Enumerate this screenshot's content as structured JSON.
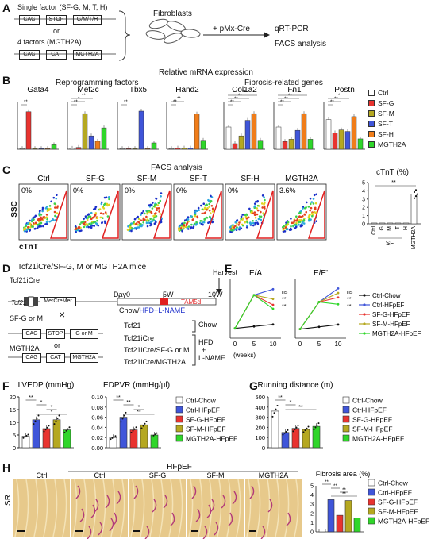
{
  "panels": {
    "A": "A",
    "B": "B",
    "C": "C",
    "D": "D",
    "E": "E",
    "F": "F",
    "G": "G",
    "H": "H"
  },
  "colors": {
    "ctrl": "#ffffff",
    "g": "#e8332f",
    "m": "#b5a820",
    "t": "#3f55d9",
    "h": "#f07d1a",
    "mgth2a": "#2fd62a",
    "chow": "#111111",
    "hfpef": "#3f55d9"
  },
  "panelA": {
    "single": "Single factor (SF-G, M, T, H)",
    "or": "or",
    "four": "4 factors (MGTH2A)",
    "cag": "CAG",
    "stop": "STOP",
    "gmth": "G/M/T/H",
    "cat": "CAT",
    "mgth2a": "MGTH2A",
    "fibroblasts": "Fibroblasts",
    "pmx": "+ pMx-Cre",
    "qrt": "qRT-PCR",
    "facs": "FACS analysis"
  },
  "panelB": {
    "title": "Relative mRNA expression",
    "group1": "Reprogramming factors",
    "group2": "Fibrosis-related genes",
    "genes": [
      "Gata4",
      "Mef2c",
      "Tbx5",
      "Hand2",
      "Col1a2",
      "Fn1",
      "Postn"
    ],
    "legend": [
      "Ctrl",
      "SF-G",
      "SF-M",
      "SF-T",
      "SF-H",
      "MGTH2A"
    ]
  },
  "panelC": {
    "title": "FACS analysis",
    "groups": [
      "Ctrl",
      "SF-G",
      "SF-M",
      "SF-T",
      "SF-H",
      "MGTH2A"
    ],
    "percents": [
      "0%",
      "0%",
      "0%",
      "0%",
      "0%",
      "3.6%"
    ],
    "ylabel": "SSC",
    "xlabel": "cTnT",
    "bar_title": "cTnT (%)",
    "bar_cats": [
      "Ctrl",
      "G",
      "M",
      "T",
      "H",
      "MGTH2A"
    ],
    "bar_sf": "SF",
    "bar_ticks": [
      "0",
      "1",
      "2",
      "3",
      "4",
      "5"
    ],
    "sig": "**"
  },
  "panelD": {
    "title": "Tcf21iCre/SF-G, M or MGTH2A mice",
    "tcf21": "Tcf21iCre",
    "tcf21_box": "Tcf21",
    "mercremer": "MerCreMer",
    "sfgm": "SF-G or M",
    "cross": "×",
    "or": "or",
    "mgth2a": "MGTH2A",
    "cag": "CAG",
    "stop": "STOP",
    "gorm": "G or M",
    "cat": "CAT",
    "day0": "Day0",
    "w5": "5W",
    "w10": "10W",
    "harvest": "Harvest",
    "tam": "TAM5d",
    "regimen_chow": "Chow/",
    "regimen_hfd": "HFD+L-NAME",
    "row1": "Tcf21",
    "row2": "Tcf21iCre",
    "row3": "Tcf21iCre/SF-G or M",
    "row4": "Tcf21iCre/MGTH2A",
    "chow": "Chow",
    "hfd": "HFD",
    "plus": "+",
    "lname": "L-NAME"
  },
  "panelE": {
    "chart1": "E/A",
    "chart2": "E/E'",
    "xticks": [
      "0",
      "5",
      "10"
    ],
    "xunit": "(weeks)",
    "ns": "ns",
    "stars": "**",
    "legend": [
      "Ctrl-Chow",
      "Ctrl-HFpEF",
      "SF-G-HFpEF",
      "SF-M-HFpEF",
      "MGTH2A-HFpEF"
    ]
  },
  "panelF": {
    "lvedp": "LVEDP (mmHg)",
    "edpvr": "EDPVR (mmHg/µl)",
    "lv_ticks": [
      "0",
      "5",
      "10",
      "15",
      "20"
    ],
    "ed_ticks": [
      "0.00",
      "0.02",
      "0.04",
      "0.06",
      "0.08",
      "0.10"
    ],
    "legend": [
      "Ctrl-Chow",
      "Ctrl-HFpEF",
      "SF-G-HFpEF",
      "SF-M-HFpEF",
      "MGTH2A-HFpEF"
    ]
  },
  "panelG": {
    "title": "Running distance (m)",
    "ticks": [
      "0",
      "100",
      "200",
      "300",
      "400",
      "500"
    ],
    "legend": [
      "Ctrl-Chow",
      "Ctrl-HFpEF",
      "SF-G-HFpEF",
      "SF-M-HFpEF",
      "MGTH2A-HFpEF"
    ]
  },
  "panelH": {
    "hfpef": "HFpEF",
    "cols": [
      "Ctrl",
      "Ctrl",
      "SF-G",
      "SF-M",
      "MGTH2A"
    ],
    "sr": "SR",
    "fib_title": "Fibrosis area (%)",
    "ticks": [
      "0",
      "1",
      "2",
      "3",
      "4",
      "5"
    ],
    "legend": [
      "Ctrl-Chow",
      "Ctrl-HFpEF",
      "SF-G-HFpEF",
      "SF-M-HFpEF",
      "MGTH2A-HFpEF"
    ]
  },
  "chart_data": [
    {
      "type": "bar",
      "title": "Gata4",
      "categories": [
        "Ctrl",
        "SF-G",
        "SF-M",
        "SF-T",
        "SF-H",
        "MGTH2A"
      ],
      "values": [
        5,
        590,
        3,
        4,
        8,
        70
      ],
      "sig": [
        "**"
      ]
    },
    {
      "type": "bar",
      "title": "Mef2c",
      "categories": [
        "Ctrl",
        "SF-G",
        "SF-M",
        "SF-T",
        "SF-H",
        "MGTH2A"
      ],
      "values": [
        1,
        2,
        40,
        15,
        9,
        24
      ],
      "sig": [
        "**",
        "*",
        "**"
      ]
    },
    {
      "type": "bar",
      "title": "Tbx5",
      "categories": [
        "Ctrl",
        "SF-G",
        "SF-M",
        "SF-T",
        "SF-H",
        "MGTH2A"
      ],
      "values": [
        1,
        1,
        1,
        60,
        1,
        10
      ],
      "sig": [
        "**"
      ]
    },
    {
      "type": "bar",
      "title": "Hand2",
      "categories": [
        "Ctrl",
        "SF-G",
        "SF-M",
        "SF-T",
        "SF-H",
        "MGTH2A"
      ],
      "values": [
        1,
        3,
        3,
        3,
        95,
        24
      ],
      "sig": [
        "**",
        "**"
      ]
    },
    {
      "type": "bar",
      "title": "Col1a2",
      "categories": [
        "Ctrl",
        "SF-G",
        "SF-M",
        "SF-T",
        "SF-H",
        "MGTH2A"
      ],
      "values": [
        1.0,
        0.25,
        0.6,
        1.3,
        1.6,
        0.4
      ],
      "sig": [
        "**",
        "**",
        "**",
        "**"
      ]
    },
    {
      "type": "bar",
      "title": "Fn1",
      "categories": [
        "Ctrl",
        "SF-G",
        "SF-M",
        "SF-T",
        "SF-H",
        "MGTH2A"
      ],
      "values": [
        1.0,
        0.35,
        0.45,
        0.85,
        1.6,
        0.45
      ],
      "sig": [
        "**",
        "**",
        "**",
        "*"
      ]
    },
    {
      "type": "bar",
      "title": "Postn",
      "categories": [
        "Ctrl",
        "SF-G",
        "SF-M",
        "SF-T",
        "SF-H",
        "MGTH2A"
      ],
      "values": [
        1.0,
        0.55,
        0.65,
        0.6,
        1.1,
        0.35
      ],
      "sig": [
        "**",
        "**",
        "*"
      ]
    },
    {
      "type": "bar",
      "title": "cTnT (%)",
      "categories": [
        "Ctrl",
        "G",
        "M",
        "T",
        "H",
        "MGTH2A"
      ],
      "values": [
        0.1,
        0.1,
        0.1,
        0.1,
        0.1,
        3.6
      ],
      "ylim": [
        0,
        5
      ]
    },
    {
      "type": "line",
      "title": "E/A",
      "x": [
        0,
        5,
        10
      ],
      "series": [
        {
          "name": "Ctrl-Chow",
          "values": [
            1.5,
            1.6,
            1.7
          ]
        },
        {
          "name": "Ctrl-HFpEF",
          "values": [
            1.5,
            3.2,
            3.5
          ]
        },
        {
          "name": "SF-G-HFpEF",
          "values": [
            1.5,
            3.2,
            2.7
          ]
        },
        {
          "name": "SF-M-HFpEF",
          "values": [
            1.5,
            3.2,
            3.0
          ]
        },
        {
          "name": "MGTH2A-HFpEF",
          "values": [
            1.5,
            3.2,
            2.5
          ]
        }
      ]
    },
    {
      "type": "line",
      "title": "E/E'",
      "x": [
        0,
        5,
        10
      ],
      "series": [
        {
          "name": "Ctrl-Chow",
          "values": [
            22,
            23,
            24
          ]
        },
        {
          "name": "Ctrl-HFpEF",
          "values": [
            22,
            34,
            40
          ]
        },
        {
          "name": "SF-G-HFpEF",
          "values": [
            22,
            34,
            36
          ]
        },
        {
          "name": "SF-M-HFpEF",
          "values": [
            22,
            34,
            38
          ]
        },
        {
          "name": "MGTH2A-HFpEF",
          "values": [
            22,
            34,
            33
          ]
        }
      ]
    },
    {
      "type": "bar",
      "title": "LVEDP (mmHg)",
      "categories": [
        "Ctrl-Chow",
        "Ctrl-HFpEF",
        "SF-G-HFpEF",
        "SF-M-HFpEF",
        "MGTH2A-HFpEF"
      ],
      "values": [
        4.5,
        11,
        7.5,
        11,
        7
      ],
      "ylim": [
        0,
        20
      ]
    },
    {
      "type": "bar",
      "title": "EDPVR (mmHg/µl)",
      "categories": [
        "Ctrl-Chow",
        "Ctrl-HFpEF",
        "SF-G-HFpEF",
        "SF-M-HFpEF",
        "MGTH2A-HFpEF"
      ],
      "values": [
        0.02,
        0.06,
        0.035,
        0.045,
        0.025
      ],
      "ylim": [
        0,
        0.1
      ]
    },
    {
      "type": "bar",
      "title": "Running distance (m)",
      "categories": [
        "Ctrl-Chow",
        "Ctrl-HFpEF",
        "SF-G-HFpEF",
        "SF-M-HFpEF",
        "MGTH2A-HFpEF"
      ],
      "values": [
        360,
        150,
        190,
        180,
        210
      ],
      "ylim": [
        0,
        500
      ]
    },
    {
      "type": "bar",
      "title": "Fibrosis area (%)",
      "categories": [
        "Ctrl-Chow",
        "Ctrl-HFpEF",
        "SF-G-HFpEF",
        "SF-M-HFpEF",
        "MGTH2A-HFpEF"
      ],
      "values": [
        0.3,
        3.5,
        1.8,
        3.4,
        1.5
      ],
      "ylim": [
        0,
        5
      ]
    }
  ]
}
